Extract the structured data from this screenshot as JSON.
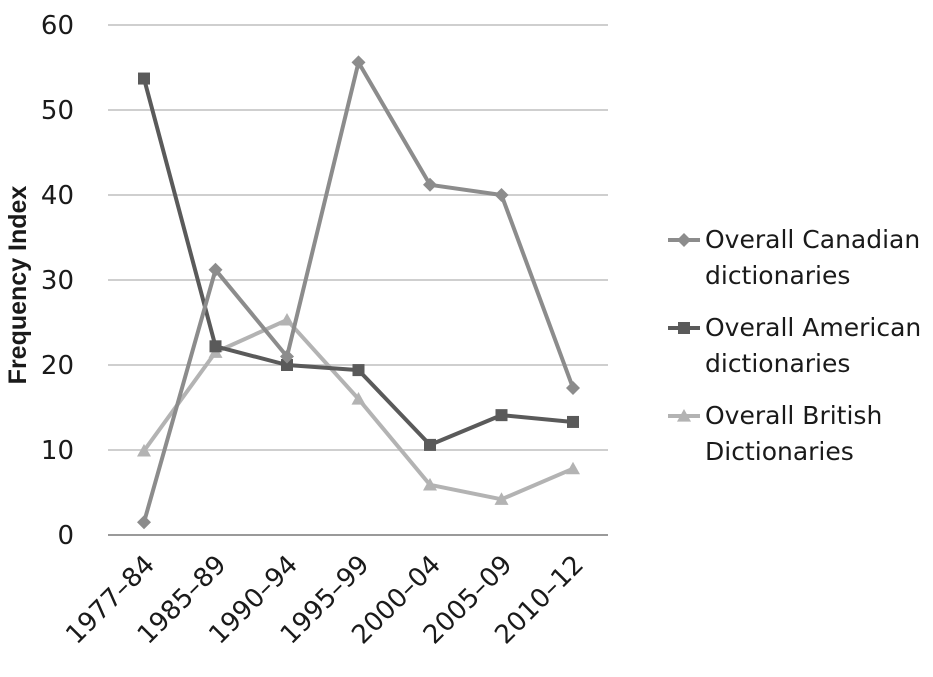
{
  "chart_data": {
    "type": "line",
    "title": "",
    "xlabel": "",
    "ylabel": "Frequency Index",
    "categories": [
      "1977–84",
      "1985–89",
      "1990–94",
      "1995–99",
      "2000–04",
      "2005–09",
      "2010–12"
    ],
    "ylim": [
      0,
      60
    ],
    "yticks": [
      0,
      10,
      20,
      30,
      40,
      50,
      60
    ],
    "grid": true,
    "legend_position": "right",
    "series": [
      {
        "name_lines": [
          "Overall Canadian",
          "dictionaries"
        ],
        "marker": "diamond",
        "color": "#8c8c8c",
        "values": [
          1.5,
          31.2,
          21.0,
          55.6,
          41.2,
          40.0,
          17.3
        ]
      },
      {
        "name_lines": [
          "Overall American",
          "dictionaries"
        ],
        "marker": "square",
        "color": "#5a5a5a",
        "values": [
          53.7,
          22.2,
          20.0,
          19.4,
          10.6,
          14.1,
          13.3
        ]
      },
      {
        "name_lines": [
          "Overall British",
          "Dictionaries"
        ],
        "marker": "triangle",
        "color": "#b3b3b3",
        "values": [
          9.9,
          21.5,
          25.3,
          16.0,
          5.9,
          4.2,
          7.8
        ]
      }
    ]
  }
}
